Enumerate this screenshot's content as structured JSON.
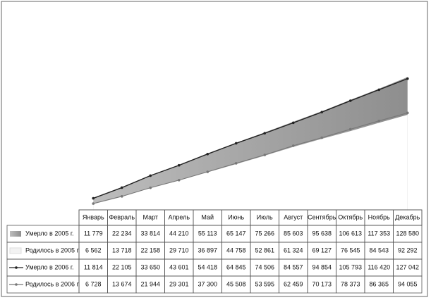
{
  "chart_data": {
    "type": "area-line",
    "categories": [
      "Январь",
      "Февраль",
      "Март",
      "Апрель",
      "Май",
      "Июнь",
      "Июль",
      "Август",
      "Сентябрь",
      "Октябрь",
      "Ноябрь",
      "Декабрь"
    ],
    "ylim": [
      0,
      135000
    ],
    "series": [
      {
        "name": "Умерло в 2005 г.",
        "color": "#a0a0a0",
        "kind": "area",
        "values": [
          11779,
          22234,
          33814,
          44210,
          55113,
          65147,
          75266,
          85603,
          95638,
          106613,
          117353,
          128580
        ],
        "value_labels": [
          "11 779",
          "22 234",
          "33 814",
          "44 210",
          "55 113",
          "65 147",
          "75 266",
          "85 603",
          "95 638",
          "106 613",
          "117 353",
          "128 580"
        ]
      },
      {
        "name": "Родилось в 2005 г.",
        "color": "#ffffff",
        "kind": "area",
        "values": [
          6562,
          13718,
          22158,
          29710,
          36897,
          44758,
          52861,
          61324,
          69127,
          76545,
          84543,
          92292
        ],
        "value_labels": [
          "6 562",
          "13 718",
          "22 158",
          "29 710",
          "36 897",
          "44 758",
          "52 861",
          "61 324",
          "69 127",
          "76 545",
          "84 543",
          "92 292"
        ]
      },
      {
        "name": "Умерло в 2006 г.",
        "color": "#222222",
        "kind": "line",
        "values": [
          11814,
          22105,
          33650,
          43601,
          54418,
          64845,
          74506,
          84557,
          94854,
          105793,
          116420,
          127042
        ],
        "value_labels": [
          "11 814",
          "22 105",
          "33 650",
          "43 601",
          "54 418",
          "64 845",
          "74 506",
          "84 557",
          "94 854",
          "105 793",
          "116 420",
          "127 042"
        ]
      },
      {
        "name": "Родилось в 2006 г.",
        "color": "#777777",
        "kind": "line",
        "values": [
          6728,
          13674,
          21944,
          29301,
          37300,
          45508,
          53595,
          62459,
          70173,
          78373,
          86365,
          94055
        ],
        "value_labels": [
          "6 728",
          "13 674",
          "21 944",
          "29 301",
          "37 300",
          "45 508",
          "53 595",
          "62 459",
          "70 173",
          "78 373",
          "86 365",
          "94 055"
        ]
      }
    ]
  }
}
